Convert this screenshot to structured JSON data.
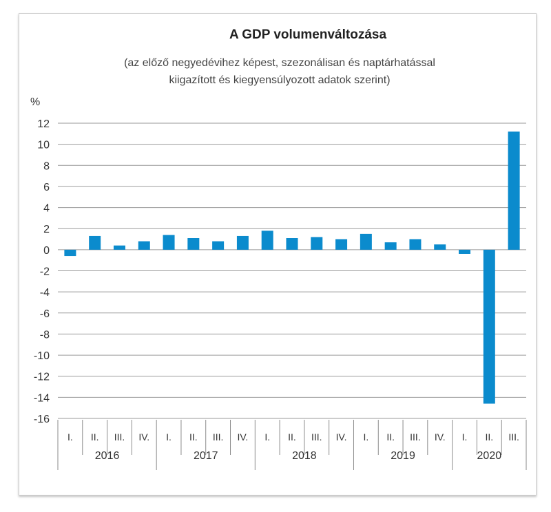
{
  "chart_data": {
    "type": "bar",
    "title": "A GDP volumenváltozása",
    "subtitle": [
      "(az előző negyedévihez képest, szezonálisan és naptárhatással",
      "kiigazított és kiegyensúlyozott adatok szerint)"
    ],
    "ylabel": "%",
    "ylim": [
      -16,
      12
    ],
    "yticks": [
      12,
      10,
      8,
      6,
      4,
      2,
      0,
      -2,
      -4,
      -6,
      -8,
      -10,
      -12,
      -14,
      -16
    ],
    "grid": true,
    "color": "#0b8bcd",
    "categories": [
      "I.",
      "II.",
      "III.",
      "IV.",
      "I.",
      "II.",
      "III.",
      "IV.",
      "I.",
      "II.",
      "III.",
      "IV.",
      "I.",
      "II.",
      "III.",
      "IV.",
      "I.",
      "II.",
      "III."
    ],
    "years": [
      {
        "label": "2016",
        "count": 4
      },
      {
        "label": "2017",
        "count": 4
      },
      {
        "label": "2018",
        "count": 4
      },
      {
        "label": "2019",
        "count": 4
      },
      {
        "label": "2020",
        "count": 3
      }
    ],
    "values": [
      -0.6,
      1.3,
      0.4,
      0.8,
      1.4,
      1.1,
      0.8,
      1.3,
      1.8,
      1.1,
      1.2,
      1.0,
      1.5,
      0.7,
      1.0,
      0.5,
      -0.4,
      -14.6,
      11.2
    ]
  }
}
